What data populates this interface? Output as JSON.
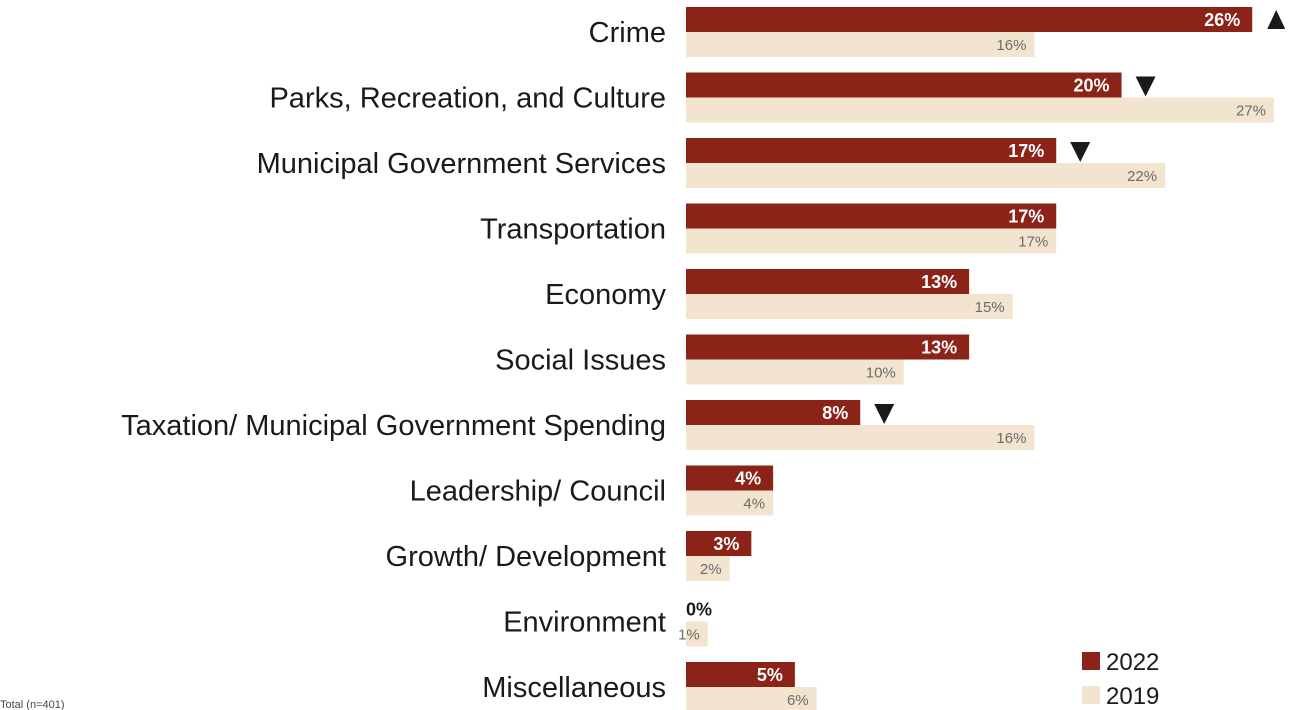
{
  "chart_data": {
    "type": "bar",
    "orientation": "horizontal",
    "categories": [
      "Crime",
      "Parks, Recreation, and Culture",
      "Municipal Government Services",
      "Transportation",
      "Economy",
      "Social Issues",
      "Taxation/ Municipal Government Spending",
      "Leadership/ Council",
      "Growth/ Development",
      "Environment",
      "Miscellaneous"
    ],
    "series": [
      {
        "name": "2022",
        "color": "#8b2319",
        "values": [
          26,
          20,
          17,
          17,
          13,
          13,
          8,
          4,
          3,
          0,
          5
        ],
        "labels": [
          "26%",
          "20%",
          "17%",
          "17%",
          "13%",
          "13%",
          "8%",
          "4%",
          "3%",
          "0%",
          "5%"
        ]
      },
      {
        "name": "2019",
        "color": "#f3e4cf",
        "values": [
          16,
          27,
          22,
          17,
          15,
          10,
          16,
          4,
          2,
          1,
          6
        ],
        "labels": [
          "16%",
          "27%",
          "22%",
          "17%",
          "15%",
          "10%",
          "16%",
          "4%",
          "2%",
          "1%",
          "6%"
        ]
      }
    ],
    "significance": [
      "up",
      "down",
      "down",
      "",
      "",
      "",
      "down",
      "",
      "",
      "",
      ""
    ],
    "xlim": [
      0,
      27
    ],
    "grid": false,
    "legend_position": "bottom-right",
    "title": "",
    "xlabel": "",
    "ylabel": "",
    "footnote": "Total (n=401)"
  },
  "colors": {
    "bar_2022": "#8b2319",
    "bar_2019": "#f3e4cf",
    "label_2019": "#6b6b6b",
    "arrow": "#1a1a1a"
  }
}
